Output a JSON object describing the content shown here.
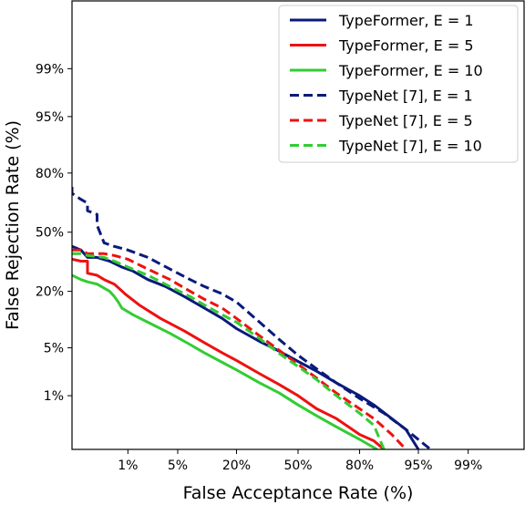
{
  "chart_data": {
    "type": "line",
    "title": "",
    "xlabel": "False Acceptance Rate (%)",
    "ylabel": "False Rejection Rate (%)",
    "scale": "normal-deviate (DET)",
    "grid": false,
    "legend_position": "top-right",
    "x_ticks": [
      {
        "value": 0.01,
        "label": "1%"
      },
      {
        "value": 0.05,
        "label": "5%"
      },
      {
        "value": 0.2,
        "label": "20%"
      },
      {
        "value": 0.5,
        "label": "50%"
      },
      {
        "value": 0.8,
        "label": "80%"
      },
      {
        "value": 0.95,
        "label": "95%"
      },
      {
        "value": 0.99,
        "label": "99%"
      }
    ],
    "y_ticks": [
      {
        "value": 0.01,
        "label": "1%"
      },
      {
        "value": 0.05,
        "label": "5%"
      },
      {
        "value": 0.2,
        "label": "20%"
      },
      {
        "value": 0.5,
        "label": "50%"
      },
      {
        "value": 0.8,
        "label": "80%"
      },
      {
        "value": 0.95,
        "label": "95%"
      },
      {
        "value": 0.99,
        "label": "99%"
      }
    ],
    "xlim": [
      0.001,
      0.999
    ],
    "ylim": [
      0.001,
      0.9995
    ],
    "series": [
      {
        "name": "TypeFormer, E = 1",
        "color": "#0a1a7a",
        "dash": "solid",
        "x": [
          0.001,
          0.0015,
          0.002,
          0.003,
          0.005,
          0.008,
          0.012,
          0.02,
          0.035,
          0.06,
          0.1,
          0.15,
          0.2,
          0.3,
          0.4,
          0.5,
          0.6,
          0.7,
          0.8,
          0.85,
          0.9,
          0.93,
          0.95
        ],
        "y": [
          0.42,
          0.4,
          0.36,
          0.36,
          0.34,
          0.31,
          0.29,
          0.25,
          0.22,
          0.18,
          0.14,
          0.11,
          0.085,
          0.06,
          0.045,
          0.033,
          0.024,
          0.016,
          0.01,
          0.007,
          0.004,
          0.0025,
          0.001
        ]
      },
      {
        "name": "TypeFormer, E = 5",
        "color": "#ee1111",
        "dash": "solid",
        "x": [
          0.001,
          0.0015,
          0.002,
          0.002,
          0.003,
          0.004,
          0.006,
          0.009,
          0.015,
          0.03,
          0.06,
          0.1,
          0.15,
          0.2,
          0.3,
          0.4,
          0.5,
          0.6,
          0.7,
          0.8,
          0.85,
          0.88
        ],
        "y": [
          0.35,
          0.34,
          0.34,
          0.28,
          0.27,
          0.25,
          0.23,
          0.19,
          0.15,
          0.11,
          0.08,
          0.058,
          0.043,
          0.034,
          0.022,
          0.015,
          0.01,
          0.006,
          0.004,
          0.002,
          0.0015,
          0.001
        ]
      },
      {
        "name": "TypeFormer, E = 10",
        "color": "#33cc33",
        "dash": "solid",
        "x": [
          0.001,
          0.0015,
          0.002,
          0.003,
          0.005,
          0.006,
          0.007,
          0.008,
          0.012,
          0.02,
          0.04,
          0.07,
          0.1,
          0.15,
          0.2,
          0.3,
          0.4,
          0.5,
          0.6,
          0.7,
          0.8,
          0.86
        ],
        "y": [
          0.27,
          0.25,
          0.24,
          0.23,
          0.2,
          0.18,
          0.16,
          0.14,
          0.12,
          0.1,
          0.075,
          0.055,
          0.043,
          0.032,
          0.025,
          0.016,
          0.011,
          0.007,
          0.0045,
          0.0028,
          0.0016,
          0.001
        ]
      },
      {
        "name": "TypeNet [7], E = 1",
        "color": "#0a1a7a",
        "dash": "dashed",
        "x": [
          0.001,
          0.001,
          0.0015,
          0.002,
          0.002,
          0.003,
          0.003,
          0.004,
          0.006,
          0.01,
          0.02,
          0.04,
          0.07,
          0.1,
          0.15,
          0.2,
          0.3,
          0.4,
          0.5,
          0.6,
          0.7,
          0.8,
          0.88,
          0.93,
          0.965
        ],
        "y": [
          0.74,
          0.71,
          0.68,
          0.66,
          0.62,
          0.6,
          0.54,
          0.44,
          0.42,
          0.4,
          0.36,
          0.3,
          0.25,
          0.22,
          0.19,
          0.16,
          0.1,
          0.063,
          0.04,
          0.026,
          0.016,
          0.009,
          0.005,
          0.0025,
          0.001
        ]
      },
      {
        "name": "TypeNet [7], E = 5",
        "color": "#ee1111",
        "dash": "dashed",
        "x": [
          0.001,
          0.0015,
          0.002,
          0.004,
          0.006,
          0.01,
          0.02,
          0.04,
          0.07,
          0.1,
          0.15,
          0.2,
          0.3,
          0.4,
          0.5,
          0.6,
          0.7,
          0.8,
          0.85,
          0.9,
          0.93
        ],
        "y": [
          0.4,
          0.4,
          0.38,
          0.38,
          0.37,
          0.35,
          0.3,
          0.25,
          0.2,
          0.17,
          0.14,
          0.11,
          0.07,
          0.046,
          0.03,
          0.019,
          0.011,
          0.006,
          0.004,
          0.002,
          0.001
        ]
      },
      {
        "name": "TypeNet [7], E = 10",
        "color": "#33cc33",
        "dash": "dashed",
        "x": [
          0.001,
          0.0015,
          0.002,
          0.004,
          0.006,
          0.01,
          0.02,
          0.04,
          0.07,
          0.1,
          0.15,
          0.2,
          0.3,
          0.4,
          0.5,
          0.6,
          0.7,
          0.8,
          0.85,
          0.88
        ],
        "y": [
          0.38,
          0.38,
          0.37,
          0.36,
          0.34,
          0.31,
          0.27,
          0.22,
          0.18,
          0.15,
          0.12,
          0.1,
          0.065,
          0.042,
          0.028,
          0.018,
          0.01,
          0.005,
          0.003,
          0.001
        ]
      }
    ]
  }
}
